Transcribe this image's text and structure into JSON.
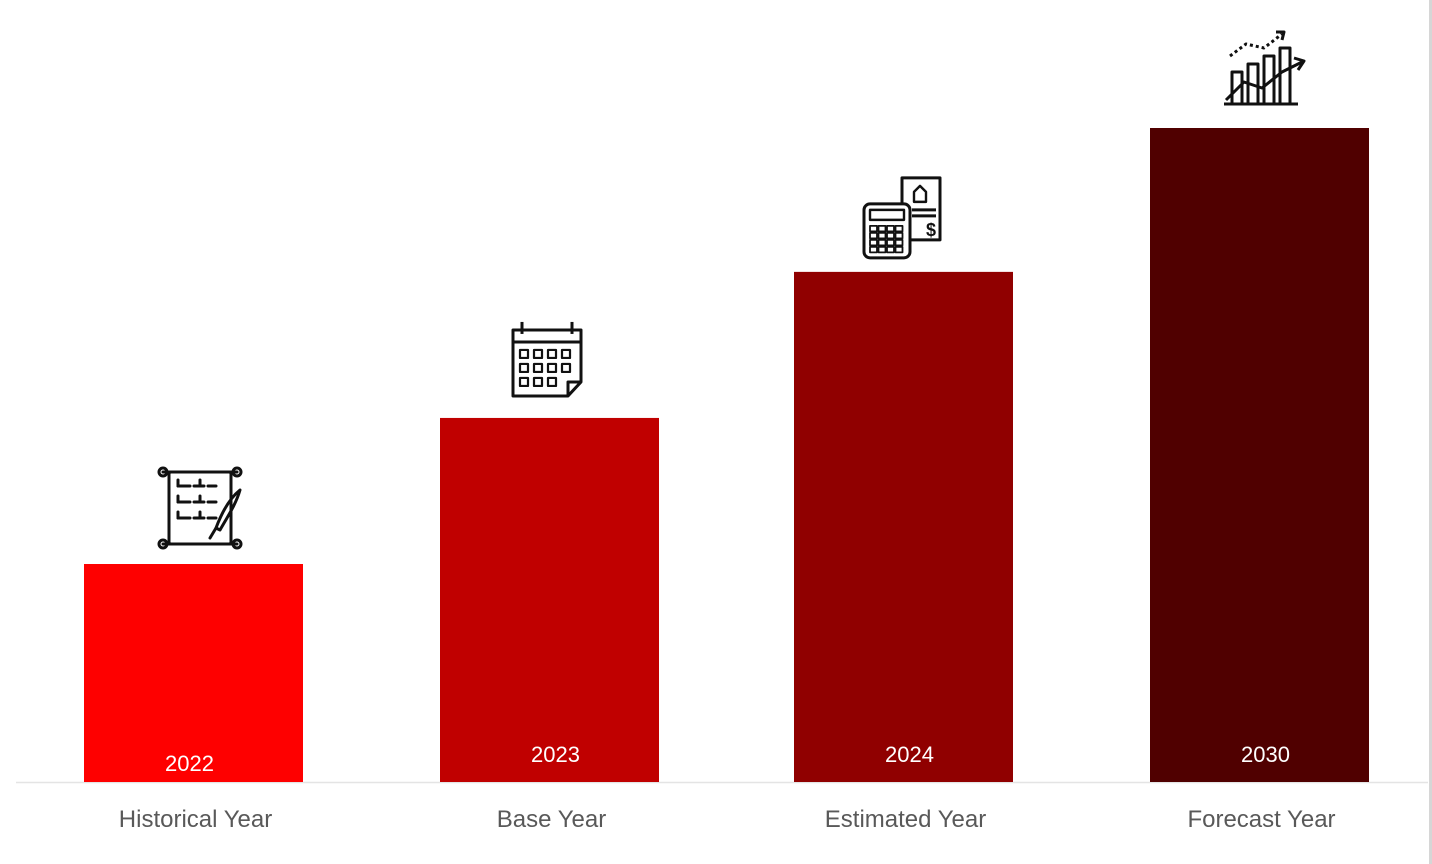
{
  "chart_data": {
    "type": "bar",
    "categories": [
      "Historical Year",
      "Base Year",
      "Estimated Year",
      "Forecast Year"
    ],
    "series": [
      {
        "values": [
          1,
          1.67,
          2.34,
          3.0
        ]
      }
    ],
    "bar_labels": [
      "2022",
      "2023",
      "2024",
      "2030"
    ],
    "bar_colors": [
      "#fe0000",
      "#c00000",
      "#900000",
      "#500000"
    ],
    "icons": [
      "scroll-quill-icon",
      "calendar-icon",
      "calculator-invoice-icon",
      "growth-chart-icon"
    ],
    "ylim": [
      0,
      3
    ],
    "grid": false,
    "legend": "none",
    "title": "",
    "xlabel": "",
    "ylabel": ""
  }
}
